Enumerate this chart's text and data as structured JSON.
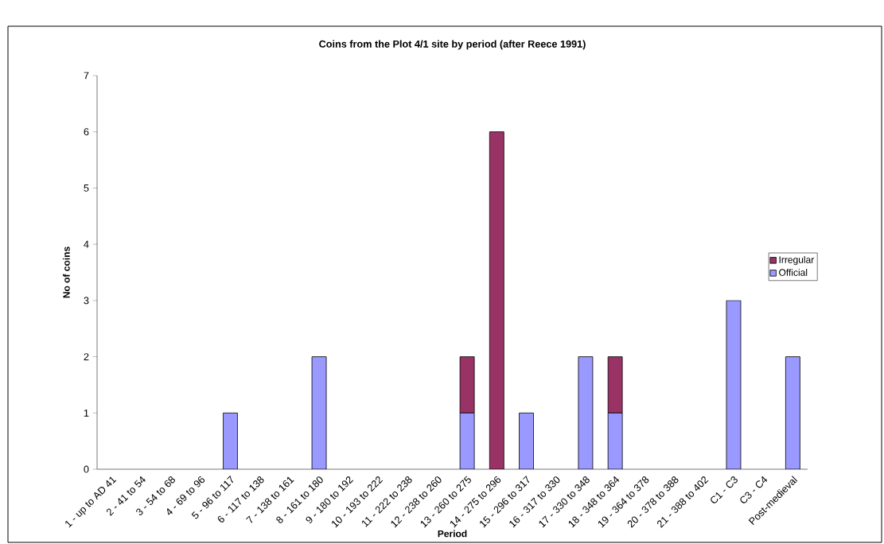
{
  "chart_data": {
    "type": "bar",
    "title": "Coins from the Plot 4/1 site by period (after Reece 1991)",
    "xlabel": "Period",
    "ylabel": "No of coins",
    "categories": [
      "1 - up to AD 41",
      "2 - 41 to  54",
      "3 - 54 to 68",
      "4 - 69 to  96",
      "5 - 96 to 117",
      "6 - 117 to 138",
      "7 - 138 to 161",
      "8 - 161 to 180",
      "9 - 180 to 192",
      "10 - 193 to 222",
      "11 - 222 to 238",
      "12 - 238 to 260",
      "13 - 260 to 275",
      "14 - 275 to 296",
      "15 - 296 to 317",
      "16 - 317 to 330",
      "17 - 330 to 348",
      "18 - 348 to 364",
      "19 - 364 to 378",
      "20 - 378 to 388",
      "21 - 388 to 402",
      "C1 - C3",
      "C3 - C4",
      "Post-medieval"
    ],
    "series": [
      {
        "name": "Official",
        "color": "#9999ff",
        "values": [
          0,
          0,
          0,
          0,
          1,
          0,
          0,
          2,
          0,
          0,
          0,
          0,
          1,
          0,
          1,
          0,
          2,
          1,
          0,
          0,
          0,
          3,
          0,
          2
        ]
      },
      {
        "name": "Irregular",
        "color": "#993366",
        "values": [
          0,
          0,
          0,
          0,
          0,
          0,
          0,
          0,
          0,
          0,
          0,
          0,
          1,
          6,
          0,
          0,
          0,
          1,
          0,
          0,
          0,
          0,
          0,
          0
        ]
      }
    ],
    "stacked": true,
    "ylim": [
      0,
      7
    ],
    "yticks": [
      0,
      1,
      2,
      3,
      4,
      5,
      6,
      7
    ],
    "grid": false,
    "legend": "right"
  }
}
